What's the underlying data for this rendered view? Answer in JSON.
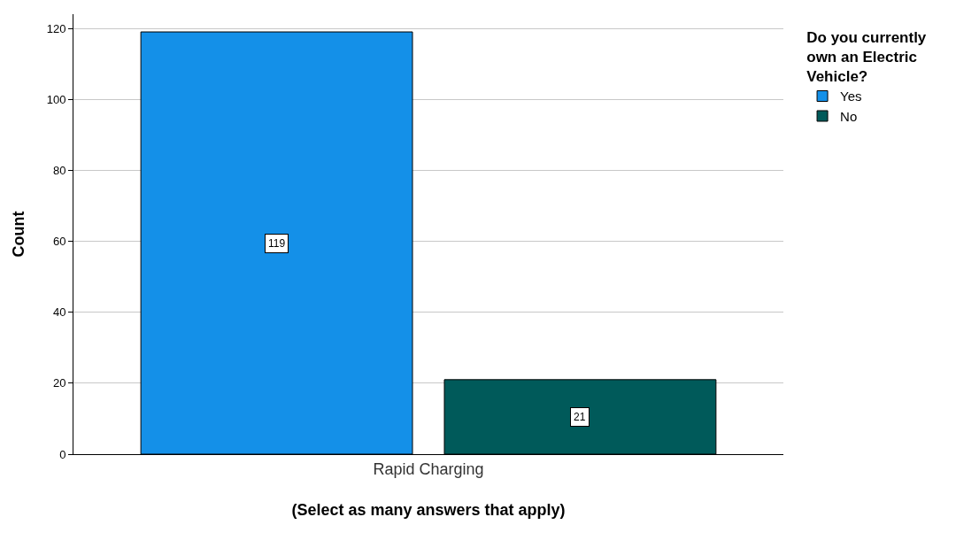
{
  "chart_data": {
    "type": "bar",
    "categories": [
      "Rapid Charging"
    ],
    "series": [
      {
        "name": "Yes",
        "color": "#1490e8",
        "values": [
          119
        ]
      },
      {
        "name": "No",
        "color": "#005a5a",
        "values": [
          21
        ]
      }
    ],
    "xlabel": "(Select as many answers that apply)",
    "ylabel": "Count",
    "legend_title": "Do you currently own an Electric Vehicle?",
    "ylim": [
      0,
      124
    ],
    "yticks": [
      0,
      20,
      40,
      60,
      80,
      100,
      120
    ],
    "grid": "y",
    "legend": "right",
    "data_labels": true
  }
}
